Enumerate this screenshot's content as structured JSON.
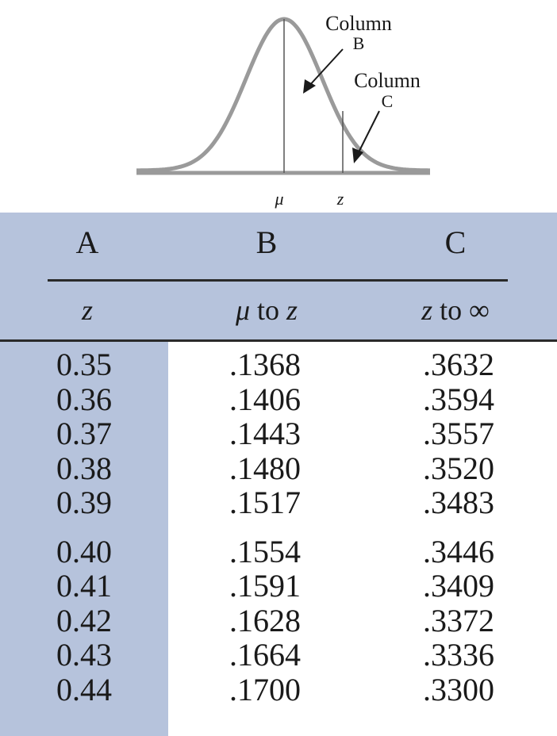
{
  "figure": {
    "labels": {
      "column_b": [
        "Column",
        "B"
      ],
      "column_c": [
        "Column",
        "C"
      ],
      "mu": "μ",
      "z": "z"
    }
  },
  "table": {
    "headers": {
      "a": "A",
      "b": "B",
      "c": "C"
    },
    "subheaders": {
      "a": "z",
      "b_symbol": "μ",
      "b_text": " to ",
      "b_var": "z",
      "c_var": "z",
      "c_text": " to ",
      "c_symbol": "∞"
    },
    "groups": [
      {
        "rows": [
          {
            "z": "0.35",
            "mu_to_z": ".1368",
            "z_to_inf": ".3632"
          },
          {
            "z": "0.36",
            "mu_to_z": ".1406",
            "z_to_inf": ".3594"
          },
          {
            "z": "0.37",
            "mu_to_z": ".1443",
            "z_to_inf": ".3557"
          },
          {
            "z": "0.38",
            "mu_to_z": ".1480",
            "z_to_inf": ".3520"
          },
          {
            "z": "0.39",
            "mu_to_z": ".1517",
            "z_to_inf": ".3483"
          }
        ]
      },
      {
        "rows": [
          {
            "z": "0.40",
            "mu_to_z": ".1554",
            "z_to_inf": ".3446"
          },
          {
            "z": "0.41",
            "mu_to_z": ".1591",
            "z_to_inf": ".3409"
          },
          {
            "z": "0.42",
            "mu_to_z": ".1628",
            "z_to_inf": ".3372"
          },
          {
            "z": "0.43",
            "mu_to_z": ".1664",
            "z_to_inf": ".3336"
          },
          {
            "z": "0.44",
            "mu_to_z": ".1700",
            "z_to_inf": ".3300"
          }
        ]
      }
    ]
  }
}
